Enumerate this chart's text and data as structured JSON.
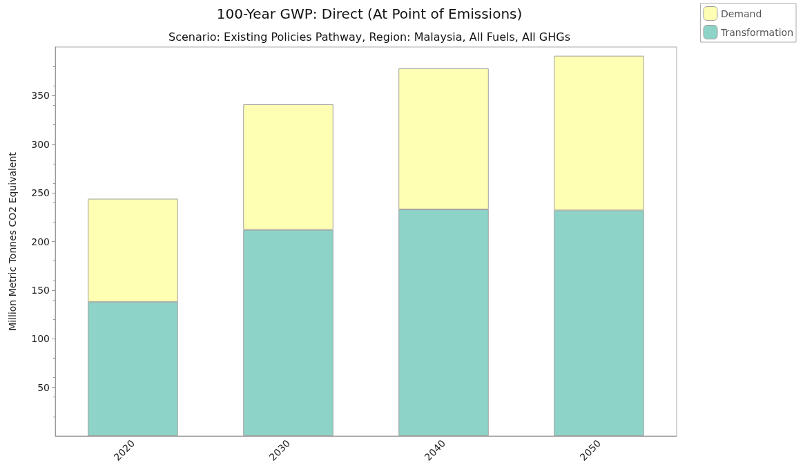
{
  "chart_data": {
    "type": "bar",
    "title": "100-Year GWP: Direct (At Point of Emissions)",
    "subtitle": "Scenario: Existing Policies Pathway, Region: Malaysia, All Fuels, All GHGs",
    "ylabel": "Million Metric Tonnes CO2 Equivalent",
    "categories": [
      "2020",
      "2030",
      "2040",
      "2050"
    ],
    "stacked": true,
    "series": [
      {
        "name": "Transformation",
        "color": "#8dd3c7",
        "values": [
          138,
          212,
          233,
          232
        ]
      },
      {
        "name": "Demand",
        "color": "#ffffb3",
        "values": [
          106,
          129,
          145,
          159
        ]
      }
    ],
    "ylim": [
      0,
      400
    ],
    "yticks": [
      50,
      100,
      150,
      200,
      250,
      300,
      350
    ],
    "grid": false,
    "legend": "top right"
  }
}
